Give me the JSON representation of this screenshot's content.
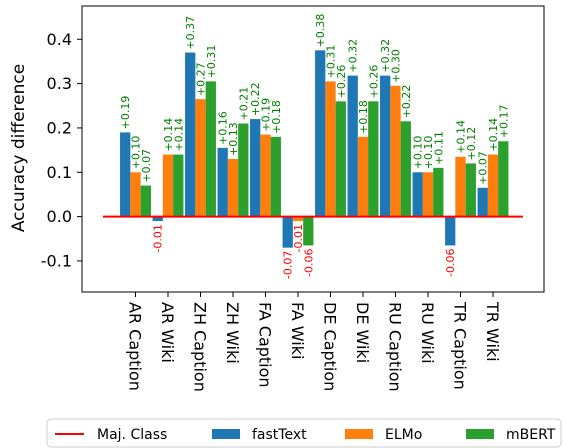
{
  "chart_data": {
    "type": "bar",
    "ylabel": "Accuracy difference",
    "ylim": [
      -0.17,
      0.475
    ],
    "yticks": [
      -0.1,
      0.0,
      0.1,
      0.2,
      0.3,
      0.4
    ],
    "ytick_labels": [
      "-0.1",
      "0.0",
      "0.1",
      "0.2",
      "0.3",
      "0.4"
    ],
    "categories": [
      "AR Caption",
      "AR Wiki",
      "ZH Caption",
      "ZH Wiki",
      "FA Caption",
      "FA Wiki",
      "DE Caption",
      "DE Wiki",
      "RU Caption",
      "RU Wiki",
      "TR Caption",
      "TR Wiki"
    ],
    "series": [
      {
        "name": "fastText",
        "color": "#1f77b4",
        "values": [
          0.19,
          -0.01,
          0.37,
          0.155,
          0.22,
          -0.07,
          0.375,
          0.318,
          0.318,
          0.1,
          -0.065,
          0.065
        ],
        "data_labels": [
          "+0.19",
          "-0.01",
          "+0.37",
          "+0.16",
          "+0.22",
          "-0.07",
          "+0.38",
          "+0.32",
          "+0.32",
          "+0.10",
          "-0.06",
          "+0.07"
        ]
      },
      {
        "name": "ELMo",
        "color": "#ff7f0e",
        "values": [
          0.1,
          0.14,
          0.265,
          0.13,
          0.185,
          -0.01,
          0.305,
          0.18,
          0.295,
          0.1,
          0.135,
          0.14
        ],
        "data_labels": [
          "+0.10",
          "+0.14",
          "+0.27",
          "+0.13",
          "+0.19",
          "-0.01",
          "+0.31",
          "+0.18",
          "+0.30",
          "+0.10",
          "+0.14",
          "+0.14"
        ]
      },
      {
        "name": "mBERT",
        "color": "#2ca02c",
        "values": [
          0.07,
          0.14,
          0.305,
          0.21,
          0.18,
          -0.065,
          0.26,
          0.26,
          0.215,
          0.11,
          0.12,
          0.17
        ],
        "data_labels": [
          "+0.07",
          "+0.14",
          "+0.31",
          "+0.21",
          "+0.18",
          "-0.06",
          "+0.26",
          "+0.26",
          "+0.22",
          "+0.11",
          "+0.12",
          "+0.17"
        ]
      }
    ],
    "baseline": {
      "name": "Maj. Class",
      "value": 0.0,
      "color": "#ff0000"
    },
    "positive_label_color": "#008000",
    "negative_label_color": "#ff0000",
    "legend": {
      "placement": "bottom",
      "entries": [
        "Maj. Class",
        "fastText",
        "ELMo",
        "mBERT"
      ]
    }
  }
}
